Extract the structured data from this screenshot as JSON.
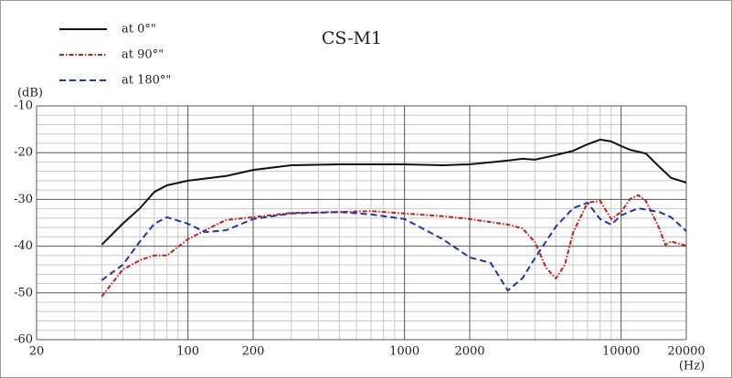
{
  "chart_data": {
    "type": "line",
    "title": "CS-M1",
    "y_label": "(dB)",
    "x_label": "(Hz)",
    "log_x": true,
    "grid": true,
    "xlim": [
      20,
      20000
    ],
    "ylim": [
      -60,
      -10
    ],
    "xticks": [
      20,
      100,
      200,
      1000,
      2000,
      10000,
      20000
    ],
    "yticks": [
      -10,
      -20,
      -30,
      -40,
      -50,
      -60
    ],
    "xminor": [
      30,
      40,
      50,
      60,
      70,
      80,
      90,
      300,
      400,
      500,
      600,
      700,
      800,
      900,
      3000,
      4000,
      5000,
      6000,
      7000,
      8000,
      9000
    ],
    "yminor": [
      -12,
      -14,
      -16,
      -18,
      -22,
      -24,
      -26,
      -28,
      -32,
      -34,
      -36,
      -38,
      -42,
      -44,
      -46,
      -48,
      -52,
      -54,
      -56,
      -58
    ],
    "series": [
      {
        "name": "at 0°\"",
        "color": "#111111",
        "dash": "solid",
        "x": [
          40,
          50,
          60,
          70,
          80,
          100,
          150,
          200,
          300,
          500,
          1000,
          1500,
          2000,
          3000,
          3500,
          4000,
          5000,
          6000,
          7000,
          8000,
          9000,
          10000,
          11000,
          13000,
          15000,
          17000,
          20000
        ],
        "values": [
          -39.7,
          -35.2,
          -31.9,
          -28.4,
          -27,
          -26,
          -25,
          -23.7,
          -22.7,
          -22.5,
          -22.5,
          -22.7,
          -22.5,
          -21.7,
          -21.3,
          -21.5,
          -20.5,
          -19.6,
          -18.2,
          -17.2,
          -17.6,
          -18.6,
          -19.4,
          -20.2,
          -23,
          -25.4,
          -26.4
        ]
      },
      {
        "name": "at 90°\"",
        "color": "#cc1a1a",
        "dash": "dashdot",
        "x": [
          40,
          50,
          60,
          70,
          80,
          100,
          130,
          150,
          200,
          300,
          500,
          700,
          1000,
          1500,
          2000,
          3000,
          3500,
          4000,
          4500,
          5000,
          5500,
          6000,
          7000,
          8000,
          9000,
          10000,
          11000,
          12000,
          13000,
          15000,
          16000,
          17000,
          20000
        ],
        "values": [
          -50.8,
          -45,
          -43,
          -42,
          -42,
          -38.5,
          -35.8,
          -34.4,
          -33.8,
          -32.9,
          -32.7,
          -32.5,
          -33,
          -33.6,
          -34.2,
          -35.4,
          -36.2,
          -39.1,
          -44.6,
          -46.9,
          -44,
          -37.1,
          -30.7,
          -30.3,
          -34.2,
          -32.7,
          -29.9,
          -29.1,
          -30.3,
          -36.2,
          -39.7,
          -39,
          -39.9
        ]
      },
      {
        "name": "at 180°\"",
        "color": "#1f35a8",
        "dash": "dashed",
        "x": [
          40,
          50,
          60,
          70,
          80,
          100,
          120,
          150,
          200,
          300,
          500,
          700,
          1000,
          1500,
          2000,
          2500,
          3000,
          3500,
          4000,
          5000,
          6000,
          7000,
          8000,
          9000,
          10000,
          12000,
          15000,
          17000,
          20000
        ],
        "values": [
          -47.3,
          -44,
          -39,
          -35.2,
          -33.8,
          -35.2,
          -37,
          -36.6,
          -34.2,
          -33,
          -32.7,
          -33.2,
          -34.2,
          -38.5,
          -42.4,
          -43.6,
          -49.5,
          -46.9,
          -42.6,
          -35.8,
          -31.9,
          -30.7,
          -34.2,
          -35.4,
          -33.4,
          -31.9,
          -32.7,
          -33.8,
          -36.8
        ]
      }
    ]
  }
}
